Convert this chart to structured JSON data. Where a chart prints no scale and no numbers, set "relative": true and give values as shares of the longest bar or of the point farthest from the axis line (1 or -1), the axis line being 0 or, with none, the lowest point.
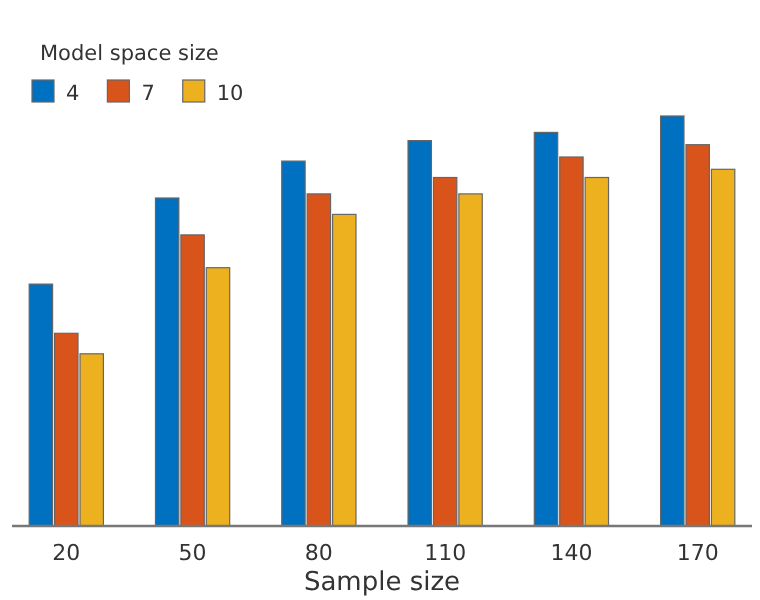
{
  "chart_data": {
    "type": "bar",
    "relative": true,
    "xlabel": "Sample size",
    "legend_title": "Model space size",
    "legend": "top left",
    "categories": [
      "20",
      "50",
      "80",
      "110",
      "140",
      "170"
    ],
    "series": [
      {
        "name": "4",
        "color": "#0070c0",
        "values": [
          0.59,
          0.8,
          0.89,
          0.94,
          0.96,
          1
        ]
      },
      {
        "name": "7",
        "color": "#d9541a",
        "values": [
          0.47,
          0.71,
          0.81,
          0.85,
          0.9,
          0.93
        ]
      },
      {
        "name": "10",
        "color": "#edb120",
        "values": [
          0.42,
          0.63,
          0.76,
          0.81,
          0.85,
          0.87
        ]
      }
    ]
  }
}
